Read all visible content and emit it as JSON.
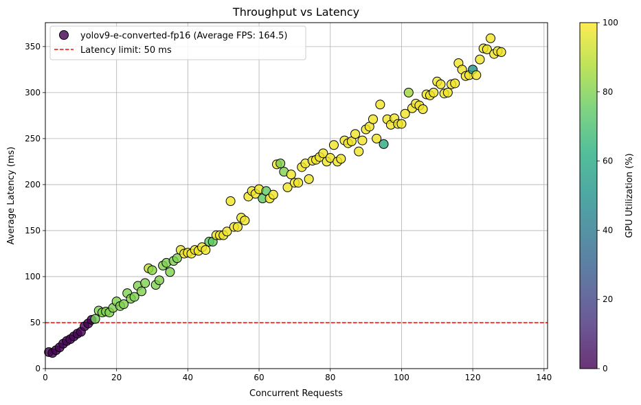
{
  "chart_data": {
    "type": "scatter",
    "title": "Throughput vs Latency",
    "xlabel": "Concurrent Requests",
    "ylabel": "Average Latency (ms)",
    "xlim": [
      0,
      141
    ],
    "ylim": [
      0,
      376
    ],
    "x_ticks": [
      0,
      20,
      40,
      60,
      80,
      100,
      120,
      140
    ],
    "y_ticks": [
      0,
      50,
      100,
      150,
      200,
      250,
      300,
      350
    ],
    "grid": true,
    "legend_position": "top-left",
    "series": [
      {
        "name": "yolov9-e-converted-fp16 (Average FPS: 164.5)",
        "color_map": "viridis",
        "points": [
          [
            1,
            18,
            0
          ],
          [
            2,
            17,
            0
          ],
          [
            3,
            20,
            0
          ],
          [
            4,
            23,
            0
          ],
          [
            5,
            27,
            0
          ],
          [
            6,
            30,
            0
          ],
          [
            7,
            32,
            0
          ],
          [
            8,
            35,
            0
          ],
          [
            9,
            38,
            0
          ],
          [
            10,
            40,
            0
          ],
          [
            11,
            46,
            0
          ],
          [
            12,
            49,
            0
          ],
          [
            13,
            53,
            0
          ],
          [
            14,
            54,
            78
          ],
          [
            15,
            63,
            80
          ],
          [
            16,
            61,
            80
          ],
          [
            17,
            62,
            80
          ],
          [
            18,
            61,
            80
          ],
          [
            19,
            66,
            80
          ],
          [
            20,
            73,
            80
          ],
          [
            21,
            68,
            80
          ],
          [
            22,
            70,
            80
          ],
          [
            23,
            82,
            80
          ],
          [
            24,
            76,
            80
          ],
          [
            25,
            78,
            80
          ],
          [
            26,
            90,
            80
          ],
          [
            27,
            84,
            80
          ],
          [
            28,
            93,
            80
          ],
          [
            29,
            109,
            90
          ],
          [
            30,
            107,
            82
          ],
          [
            31,
            91,
            80
          ],
          [
            32,
            96,
            80
          ],
          [
            33,
            112,
            80
          ],
          [
            34,
            115,
            80
          ],
          [
            35,
            105,
            80
          ],
          [
            36,
            117,
            80
          ],
          [
            37,
            120,
            80
          ],
          [
            38,
            129,
            96
          ],
          [
            39,
            125,
            98
          ],
          [
            40,
            126,
            98
          ],
          [
            41,
            125,
            98
          ],
          [
            42,
            129,
            98
          ],
          [
            43,
            128,
            98
          ],
          [
            44,
            132,
            98
          ],
          [
            45,
            129,
            98
          ],
          [
            46,
            138,
            75
          ],
          [
            47,
            138,
            75
          ],
          [
            48,
            145,
            98
          ],
          [
            49,
            145,
            98
          ],
          [
            50,
            145,
            98
          ],
          [
            51,
            149,
            98
          ],
          [
            52,
            182,
            98
          ],
          [
            53,
            154,
            98
          ],
          [
            54,
            154,
            98
          ],
          [
            55,
            164,
            98
          ],
          [
            56,
            161,
            98
          ],
          [
            57,
            187,
            98
          ],
          [
            58,
            193,
            98
          ],
          [
            59,
            190,
            98
          ],
          [
            60,
            195,
            98
          ],
          [
            61,
            185,
            75
          ],
          [
            62,
            193,
            75
          ],
          [
            63,
            185,
            98
          ],
          [
            64,
            189,
            98
          ],
          [
            65,
            222,
            98
          ],
          [
            66,
            223,
            80
          ],
          [
            67,
            214,
            80
          ],
          [
            68,
            197,
            98
          ],
          [
            69,
            211,
            98
          ],
          [
            70,
            202,
            98
          ],
          [
            71,
            202,
            98
          ],
          [
            72,
            219,
            98
          ],
          [
            73,
            223,
            98
          ],
          [
            74,
            206,
            98
          ],
          [
            75,
            226,
            98
          ],
          [
            76,
            227,
            98
          ],
          [
            77,
            230,
            98
          ],
          [
            78,
            234,
            98
          ],
          [
            79,
            225,
            98
          ],
          [
            80,
            229,
            98
          ],
          [
            81,
            243,
            98
          ],
          [
            82,
            225,
            98
          ],
          [
            83,
            228,
            98
          ],
          [
            84,
            248,
            98
          ],
          [
            85,
            245,
            98
          ],
          [
            86,
            247,
            98
          ],
          [
            87,
            255,
            98
          ],
          [
            88,
            236,
            98
          ],
          [
            89,
            248,
            98
          ],
          [
            90,
            260,
            98
          ],
          [
            91,
            263,
            98
          ],
          [
            92,
            271,
            98
          ],
          [
            93,
            250,
            98
          ],
          [
            94,
            287,
            98
          ],
          [
            95,
            244,
            60
          ],
          [
            96,
            271,
            98
          ],
          [
            97,
            265,
            98
          ],
          [
            98,
            272,
            98
          ],
          [
            99,
            266,
            98
          ],
          [
            100,
            266,
            98
          ],
          [
            101,
            277,
            98
          ],
          [
            102,
            300,
            85
          ],
          [
            103,
            283,
            98
          ],
          [
            104,
            288,
            98
          ],
          [
            105,
            286,
            98
          ],
          [
            106,
            282,
            98
          ],
          [
            107,
            298,
            98
          ],
          [
            108,
            297,
            98
          ],
          [
            109,
            300,
            98
          ],
          [
            110,
            312,
            98
          ],
          [
            111,
            309,
            98
          ],
          [
            112,
            299,
            98
          ],
          [
            113,
            300,
            98
          ],
          [
            114,
            309,
            98
          ],
          [
            115,
            310,
            98
          ],
          [
            116,
            332,
            98
          ],
          [
            117,
            325,
            98
          ],
          [
            118,
            318,
            98
          ],
          [
            119,
            319,
            98
          ],
          [
            120,
            325,
            50
          ],
          [
            121,
            319,
            98
          ],
          [
            122,
            336,
            98
          ],
          [
            123,
            348,
            98
          ],
          [
            124,
            347,
            98
          ],
          [
            125,
            359,
            98
          ],
          [
            126,
            342,
            98
          ],
          [
            127,
            345,
            98
          ],
          [
            128,
            344,
            98
          ]
        ]
      }
    ],
    "reference_line": {
      "label": "Latency limit: 50 ms",
      "y": 50,
      "color": "#ff0000",
      "style": "dashed"
    },
    "colorbar": {
      "label": "GPU Utilization (%)",
      "min": 0,
      "max": 100,
      "ticks": [
        0,
        20,
        40,
        60,
        80,
        100
      ]
    }
  }
}
